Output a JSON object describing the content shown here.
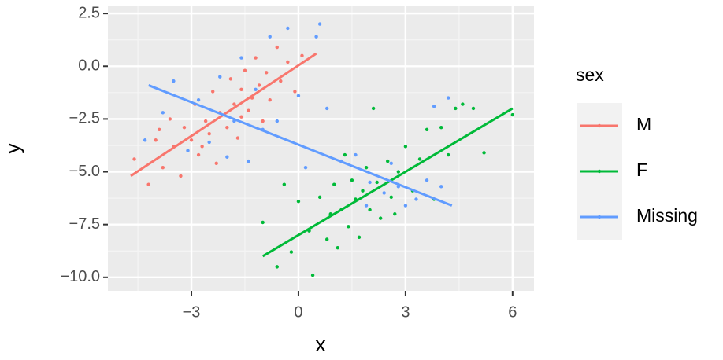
{
  "chart_data": {
    "type": "scatter",
    "x_label": "x",
    "y_label": "y",
    "legend_title": "sex",
    "legend_position": "right",
    "grid": true,
    "xlim": [
      -5.34,
      6.6
    ],
    "ylim": [
      -10.64,
      2.84
    ],
    "xticks": [
      {
        "value": -3,
        "label": "−3"
      },
      0,
      3,
      6
    ],
    "yticks": [
      2.5,
      {
        "value": 0,
        "label": "0.0"
      },
      {
        "value": -2.5,
        "label": "−2.5"
      },
      {
        "value": -5,
        "label": "−5.0"
      },
      {
        "value": -7.5,
        "label": "−7.5"
      },
      {
        "value": -10,
        "label": "−10.0"
      }
    ],
    "xminor": [
      -4.5,
      -1.5,
      1.5,
      4.5
    ],
    "yminor": [
      1.25,
      -1.25,
      -3.75,
      -6.25,
      -8.75
    ],
    "series": [
      {
        "name": "M",
        "color": "#f8766d",
        "x": [
          -4.6,
          -4.2,
          -4,
          -3.8,
          -3.6,
          -3.5,
          -3.3,
          -3.2,
          -3,
          -2.9,
          -2.8,
          -2.6,
          -2.5,
          -2.4,
          -2.3,
          -2.2,
          -2,
          -1.9,
          -1.8,
          -1.7,
          -1.6,
          -1.5,
          -1.4,
          -1.3,
          -1.2,
          -1.1,
          -1,
          -0.9,
          -0.8,
          -0.6,
          -0.5,
          -0.3,
          -0.1,
          0.1,
          -3.9,
          -2.7,
          -1.6
        ],
        "y": [
          -4.4,
          -5.6,
          -3.5,
          -4.8,
          -2.5,
          -3.8,
          -5.2,
          -2.9,
          -3.5,
          -1.8,
          -4.2,
          -2.6,
          -3.2,
          -1.2,
          -4.6,
          -2.2,
          -2.9,
          -0.6,
          -1.8,
          -3.4,
          -1.1,
          -0.2,
          -2.1,
          -1.5,
          0.4,
          -0.9,
          -2.6,
          -0.3,
          -1.6,
          0.9,
          -0.7,
          0.2,
          -1.2,
          0.5,
          -3,
          -3.8,
          -2.4
        ],
        "fit_x": [
          -4.7,
          0.5
        ],
        "fit_y": [
          -5.2,
          0.6
        ]
      },
      {
        "name": "F",
        "color": "#00ba38",
        "x": [
          -1,
          -0.6,
          -0.4,
          -0.2,
          0,
          0.3,
          0.4,
          0.6,
          0.8,
          0.9,
          1,
          1.1,
          1.2,
          1.4,
          1.5,
          1.6,
          1.7,
          1.8,
          1.9,
          2,
          2.1,
          2.2,
          2.3,
          2.5,
          2.6,
          2.8,
          3,
          3.2,
          3.4,
          3.6,
          3.8,
          4,
          4.2,
          4.4,
          4.6,
          4.9,
          5.2,
          6,
          2.7,
          1.3
        ],
        "y": [
          -7.4,
          -9.5,
          -5.6,
          -8.8,
          -6.4,
          -7.8,
          -9.9,
          -6.2,
          -8.2,
          -7,
          -5.6,
          -8.6,
          -6.8,
          -7.6,
          -5.4,
          -6.3,
          -8.1,
          -5.9,
          -4.8,
          -6.8,
          -2,
          -5.5,
          -7.2,
          -4.5,
          -6.2,
          -5,
          -3.8,
          -5.9,
          -4.4,
          -3,
          -6.3,
          -2.9,
          -4.2,
          -2,
          -1.8,
          -2,
          -4.1,
          -2.3,
          -7,
          -4.2
        ],
        "fit_x": [
          -1,
          6
        ],
        "fit_y": [
          -9,
          -2
        ]
      },
      {
        "name": "Missing",
        "color": "#619cff",
        "x": [
          -4.3,
          -3.8,
          -3.5,
          -3.1,
          -2.8,
          -2.5,
          -2.2,
          -2,
          -1.8,
          -1.6,
          -1.4,
          -1.2,
          -1,
          -0.8,
          -0.6,
          -0.3,
          0,
          0.2,
          0.5,
          0.6,
          0.8,
          1.2,
          1.6,
          2,
          2.4,
          2.8,
          3,
          3.3,
          3.6,
          4,
          4.2,
          3.8,
          2.6,
          1.9
        ],
        "y": [
          -3.5,
          -2.2,
          -0.7,
          -4,
          -1.6,
          -3.6,
          -0.5,
          -4.3,
          -2.6,
          0.4,
          -4.5,
          -1.1,
          -3,
          1.4,
          -2.6,
          1.8,
          -1.4,
          -4.8,
          1.4,
          2,
          -2,
          -4.5,
          -4.2,
          -5.5,
          -6,
          -5.7,
          -6.6,
          -6.3,
          -5.4,
          -5.7,
          -1.5,
          -1.9,
          -4.6,
          -6.6
        ],
        "fit_x": [
          -4.2,
          4.3
        ],
        "fit_y": [
          -0.9,
          -6.6
        ]
      }
    ]
  }
}
